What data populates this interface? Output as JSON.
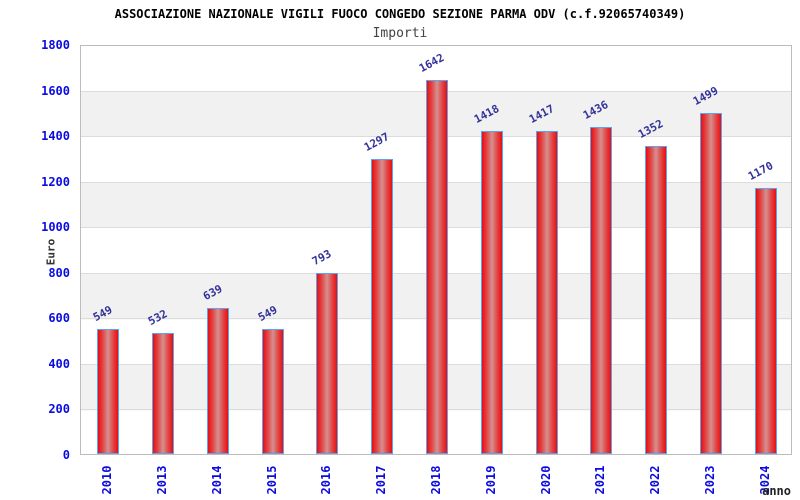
{
  "header": {
    "title": "ASSOCIAZIONE NAZIONALE VIGILI FUOCO CONGEDO SEZIONE PARMA ODV (c.f.92065740349)",
    "subtitle": "Importi"
  },
  "chart_data": {
    "type": "bar",
    "title": "ASSOCIAZIONE NAZIONALE VIGILI FUOCO CONGEDO SEZIONE PARMA ODV (c.f.92065740349)",
    "subtitle": "Importi",
    "categories": [
      "2010",
      "2013",
      "2014",
      "2015",
      "2016",
      "2017",
      "2018",
      "2019",
      "2020",
      "2021",
      "2022",
      "2023",
      "2024"
    ],
    "values": [
      549,
      532,
      639,
      549,
      793,
      1297,
      1642,
      1418,
      1417,
      1436,
      1352,
      1499,
      1170
    ],
    "xlabel": "anno",
    "ylabel": "Euro",
    "ylim": [
      0,
      1800
    ],
    "ytick_step": 200,
    "grid": "horizontal",
    "legend_position": "none",
    "value_labels_shown": true,
    "colors": {
      "bar_edge": "#e80f0f",
      "bar_center_highlight": "#d49090",
      "bar_border": "#5aa5f2",
      "value_label": "#333399",
      "axis_tick_label": "#0b0be0",
      "band_gray": "#f1f1f1",
      "band_white": "#ffffff",
      "gridline": "#dcdcdc",
      "plot_frame": "#bcbcbc",
      "title_color": "#000000",
      "subtitle_color": "#444444",
      "axis_title_color": "#333333"
    }
  }
}
